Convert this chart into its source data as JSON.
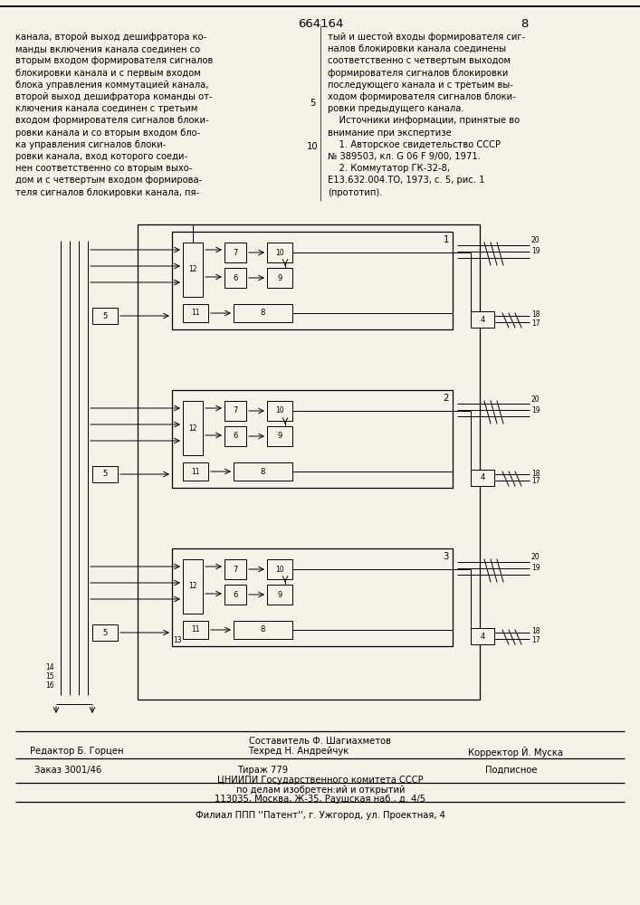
{
  "bg_color": "#f5f2e8",
  "title_patent": "664164",
  "page_num": "8",
  "left_text": [
    "канала, второй выход дешифратора ко-",
    "манды включения канала соединен со",
    "вторым входом формирователя сигналов",
    "блокировки канала и с первым входом",
    "блока управления коммутацией канала,",
    "второй выход дешифратора команды от-",
    "ключения канала соединен с третьим",
    "входом формирователя сигналов блоки-",
    "ровки канала и со вторым входом бло-",
    "ка управления сигналов блоки-",
    "ровки канала, вход которого соеди-",
    "нен соответственно со вторым выхо-",
    "дом и с четвертым входом формирова-",
    "теля сигналов блокировки канала, пя-"
  ],
  "right_text": [
    "тый и шестой входы формирователя сиг-",
    "налов блокировки канала соединены",
    "соответственно с четвертым выходом",
    "формирователя сигналов блокировки",
    "последующего канала и с третьим вы-",
    "ходом формирователя сигналов блоки-",
    "ровки предыдущего канала.",
    "    Источники информации, принятые во",
    "внимание при экспертизе",
    "    1. Авторское свидетельство СССР",
    "№ 389503, кл. G 06 F 9/00, 1971.",
    "    2. Коммутатор ГК-32-8,",
    "E13.632.004.ТО, 1973, с. 5, рис. 1",
    "(прототип)."
  ],
  "footer_composer": "Составитель Ф. Шагиахметов",
  "footer_editor": "Редактор Б. Горцен",
  "footer_techred": "Техред Н. Андрейчук",
  "footer_corrector": "Корректор Й. Муска",
  "footer_zakaz": "Заказ 3001/46",
  "footer_tirazh": "Тираж 779",
  "footer_podpisnoe": "Подписное",
  "footer_org1": "ЦНИИПИ Государственного комитета СССР",
  "footer_org2": "по делам изобретен:ий и открытий",
  "footer_org3": "113035, Москва, Ж-35, Раушская наб., д. 4/5",
  "footer_filial": "Филиал ППП ''Патент'', г. Ужгород, ул. Проектная, 4"
}
